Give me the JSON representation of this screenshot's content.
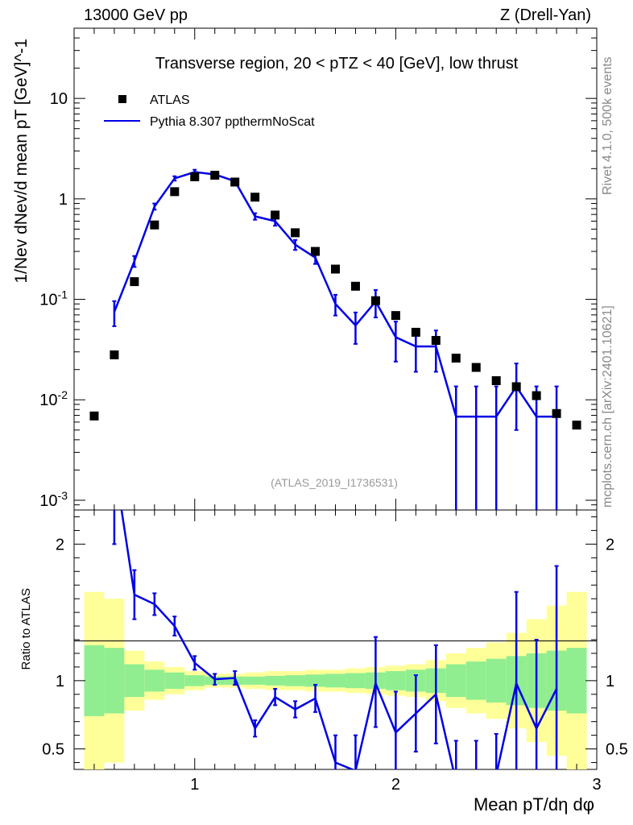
{
  "header": {
    "left": "13000 GeV pp",
    "right": "Z (Drell-Yan)"
  },
  "side": {
    "rivet": "Rivet 4.1.0,  500k events",
    "mcplots": "mcplots.cern.ch [arXiv:2401.10621]"
  },
  "chart_data": {
    "type": "scatter",
    "title": "Transverse region, 20 < pTZ < 40 [GeV], low thrust",
    "analysis_tag": "(ATLAS_2019_I1736531)",
    "xlabel": "Mean pT/dη dφ",
    "ylabel": "1/Nev dNev/d mean pT [GeV]^-1",
    "ratio_ylabel": "Ratio to ATLAS",
    "xlim": [
      0.4,
      3.0
    ],
    "ylim": [
      0.0008,
      50
    ],
    "yscale": "log",
    "ratio_ylim": [
      0.35,
      2.25
    ],
    "x_ticks": [
      1,
      2,
      3
    ],
    "y_tick_labels": [
      "10^-3",
      "10^-2",
      "10^-1",
      "1",
      "10"
    ],
    "ratio_tick_labels": [
      "0.5",
      "1",
      "2"
    ],
    "legend": [
      "ATLAS",
      "Pythia 8.307 ppthermNoScat"
    ],
    "series": [
      {
        "name": "ATLAS",
        "x": [
          0.5,
          0.6,
          0.7,
          0.8,
          0.9,
          1.0,
          1.1,
          1.2,
          1.3,
          1.4,
          1.5,
          1.6,
          1.7,
          1.8,
          1.9,
          2.0,
          2.1,
          2.2,
          2.3,
          2.4,
          2.5,
          2.6,
          2.7,
          2.8,
          2.9
        ],
        "values": [
          0.0069,
          0.028,
          0.15,
          0.55,
          1.18,
          1.66,
          1.72,
          1.47,
          1.04,
          0.69,
          0.46,
          0.3,
          0.2,
          0.135,
          0.097,
          0.069,
          0.047,
          0.039,
          0.026,
          0.021,
          0.0155,
          0.0135,
          0.011,
          0.0073,
          0.0056
        ]
      },
      {
        "name": "Pythia 8.307 ppthermNoScat",
        "x": [
          0.6,
          0.7,
          0.8,
          0.9,
          1.0,
          1.1,
          1.2,
          1.3,
          1.4,
          1.5,
          1.6,
          1.7,
          1.8,
          1.9,
          2.0,
          2.1,
          2.2,
          2.3,
          2.4,
          2.5,
          2.6,
          2.7,
          2.8
        ],
        "values": [
          0.075,
          0.24,
          0.84,
          1.6,
          1.85,
          1.75,
          1.5,
          0.67,
          0.6,
          0.35,
          0.26,
          0.09,
          0.055,
          0.095,
          0.042,
          0.034,
          0.034,
          0.0068,
          0.0068,
          0.0068,
          0.0135,
          0.0068,
          0.0068
        ],
        "err_low": [
          0.021,
          0.03,
          0.06,
          0.08,
          0.1,
          0.08,
          0.09,
          0.05,
          0.06,
          0.04,
          0.035,
          0.021,
          0.019,
          0.029,
          0.018,
          0.015,
          0.015,
          0.0068,
          0.0068,
          0.0068,
          0.0085,
          0.0068,
          0.0068
        ],
        "err_high": [
          0.021,
          0.03,
          0.06,
          0.08,
          0.1,
          0.08,
          0.09,
          0.05,
          0.06,
          0.04,
          0.035,
          0.021,
          0.019,
          0.029,
          0.018,
          0.015,
          0.015,
          0.0068,
          0.0068,
          0.0068,
          0.0095,
          0.0068,
          0.0068
        ],
        "ratio": [
          2.6,
          1.63,
          1.56,
          1.4,
          1.13,
          1.01,
          1.02,
          0.65,
          0.88,
          0.79,
          0.87,
          0.4,
          0.34,
          0.98,
          0.62,
          0.76,
          0.9,
          0.26,
          0.26,
          0.31,
          0.98,
          0.65,
          0.94
        ],
        "ratio_err_low": [
          0.6,
          0.18,
          0.08,
          0.07,
          0.05,
          0.04,
          0.05,
          0.06,
          0.06,
          0.06,
          0.1,
          0.2,
          0.15,
          0.32,
          0.28,
          0.28,
          0.36,
          0.3,
          0.3,
          0.3,
          0.67,
          0.65,
          0.66
        ],
        "ratio_err_high": [
          0.6,
          0.18,
          0.08,
          0.07,
          0.05,
          0.04,
          0.05,
          0.06,
          0.06,
          0.06,
          0.1,
          0.2,
          0.26,
          0.34,
          0.3,
          0.28,
          0.36,
          0.3,
          0.3,
          0.3,
          0.67,
          0.65,
          0.9
        ]
      }
    ],
    "uncertainty_bands": {
      "edges": [
        0.45,
        0.55,
        0.65,
        0.75,
        0.85,
        0.95,
        1.05,
        1.15,
        1.25,
        1.35,
        1.45,
        1.55,
        1.65,
        1.75,
        1.85,
        1.95,
        2.05,
        2.15,
        2.25,
        2.35,
        2.45,
        2.55,
        2.65,
        2.75,
        2.85,
        2.95
      ],
      "green": [
        0.26,
        0.24,
        0.12,
        0.08,
        0.06,
        0.04,
        0.03,
        0.03,
        0.03,
        0.035,
        0.04,
        0.045,
        0.05,
        0.055,
        0.06,
        0.07,
        0.08,
        0.09,
        0.12,
        0.14,
        0.16,
        0.18,
        0.2,
        0.22,
        0.24
      ],
      "yellow": [
        0.65,
        0.6,
        0.22,
        0.14,
        0.1,
        0.07,
        0.05,
        0.05,
        0.06,
        0.07,
        0.07,
        0.08,
        0.08,
        0.09,
        0.1,
        0.11,
        0.12,
        0.15,
        0.2,
        0.24,
        0.28,
        0.35,
        0.45,
        0.55,
        0.65
      ]
    },
    "colors": {
      "data": "#000000",
      "mc": "#0000e6",
      "band_green": "#90ee90",
      "band_yellow": "#ffff99"
    }
  }
}
